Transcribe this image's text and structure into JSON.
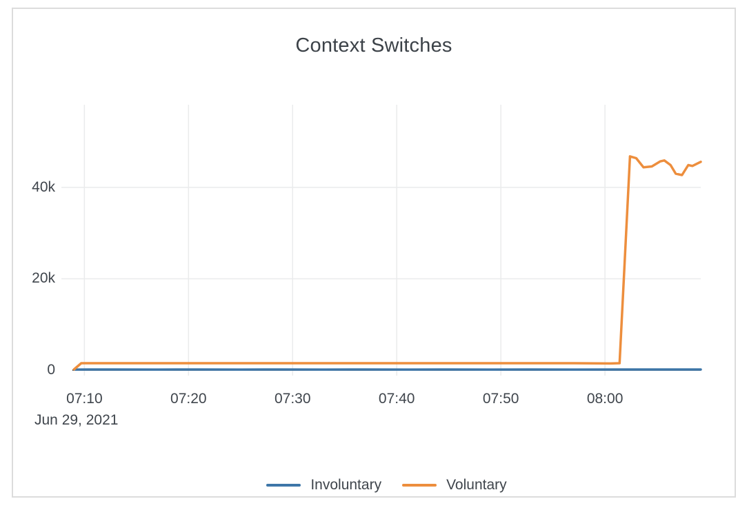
{
  "card": {
    "border_color": "#dcdcdc",
    "background": "#ffffff"
  },
  "chart_data": {
    "type": "line",
    "title": "Context Switches",
    "x_date_label": "Jun 29, 2021",
    "x_unit": "minutes after 07:00 on Jun 29, 2021",
    "xlim": [
      8.85,
      69.2
    ],
    "ylim": [
      -1210,
      58100
    ],
    "grid": true,
    "gridline_color": "#eaebec",
    "zeroline_color": "#444444",
    "legend_position": "bottom-center",
    "x_ticks": [
      {
        "t": 10,
        "label": "07:10"
      },
      {
        "t": 20,
        "label": "07:20"
      },
      {
        "t": 30,
        "label": "07:30"
      },
      {
        "t": 40,
        "label": "07:40"
      },
      {
        "t": 50,
        "label": "07:50"
      },
      {
        "t": 60,
        "label": "08:00"
      }
    ],
    "y_ticks": [
      {
        "v": 0,
        "label": "0"
      },
      {
        "v": 20000,
        "label": "20k"
      },
      {
        "v": 40000,
        "label": "40k"
      }
    ],
    "series": [
      {
        "name": "Involuntary",
        "color": "#3E76A8",
        "points": [
          [
            9.0,
            120
          ],
          [
            13,
            130
          ],
          [
            17,
            120
          ],
          [
            21,
            130
          ],
          [
            25,
            120
          ],
          [
            29,
            130
          ],
          [
            33,
            120
          ],
          [
            37,
            130
          ],
          [
            41,
            120
          ],
          [
            45,
            130
          ],
          [
            49,
            120
          ],
          [
            53,
            130
          ],
          [
            57,
            120
          ],
          [
            61,
            130
          ],
          [
            65,
            130
          ],
          [
            69.2,
            140
          ]
        ]
      },
      {
        "name": "Voluntary",
        "color": "#ED8E3D",
        "points": [
          [
            9.0,
            150
          ],
          [
            9.7,
            1500
          ],
          [
            13,
            1500
          ],
          [
            17,
            1500
          ],
          [
            21,
            1500
          ],
          [
            25,
            1500
          ],
          [
            29,
            1500
          ],
          [
            33,
            1500
          ],
          [
            37,
            1500
          ],
          [
            41,
            1500
          ],
          [
            45,
            1500
          ],
          [
            49,
            1500
          ],
          [
            53,
            1500
          ],
          [
            57,
            1500
          ],
          [
            60.5,
            1450
          ],
          [
            61.4,
            1500
          ],
          [
            62.4,
            46800
          ],
          [
            63.0,
            46400
          ],
          [
            63.7,
            44400
          ],
          [
            64.5,
            44600
          ],
          [
            65.3,
            45700
          ],
          [
            65.7,
            45900
          ],
          [
            66.3,
            44900
          ],
          [
            66.8,
            43000
          ],
          [
            67.4,
            42700
          ],
          [
            68.0,
            44900
          ],
          [
            68.4,
            44700
          ],
          [
            69.2,
            45600
          ]
        ]
      }
    ]
  }
}
